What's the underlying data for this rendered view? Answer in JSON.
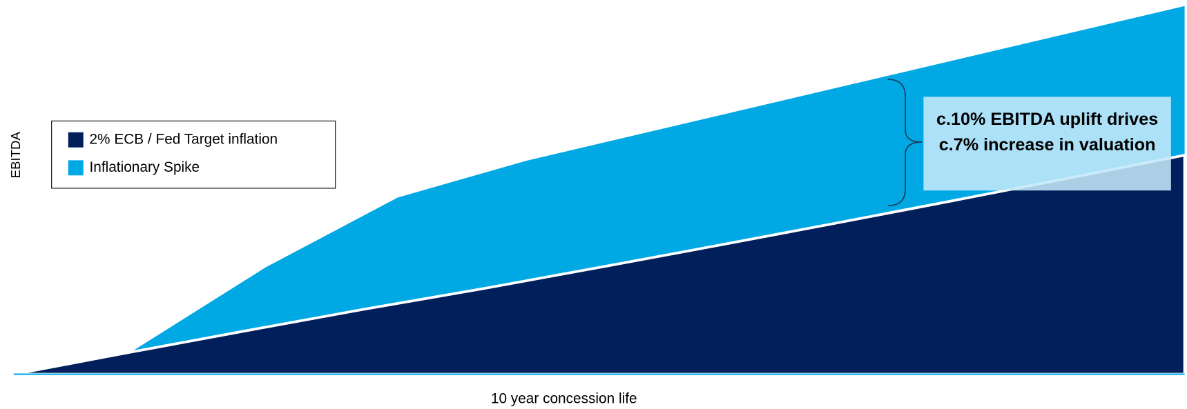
{
  "chart_data": {
    "type": "area",
    "x_label": "10 year concession life",
    "y_label": "EBITDA",
    "x": [
      0,
      1,
      2,
      3,
      4,
      5,
      6,
      7,
      8,
      9,
      10
    ],
    "xlim": [
      0,
      10
    ],
    "ylim": [
      0,
      100
    ],
    "series": [
      {
        "name": "2% ECB / Fed Target inflation",
        "color": "#001f5b",
        "values": [
          0,
          6,
          11.9,
          17.7,
          23.2,
          29,
          34.9,
          40.9,
          47,
          53.2,
          59.5
        ]
      },
      {
        "name": "Inflationary Spike",
        "color": "#00a8e4",
        "x": [
          1,
          2.15,
          3.28,
          4.38,
          10
        ],
        "values": [
          6,
          29,
          48,
          58,
          100
        ]
      }
    ],
    "annotation": "c.10% EBITDA uplift drives c.7% increase in valuation"
  }
}
